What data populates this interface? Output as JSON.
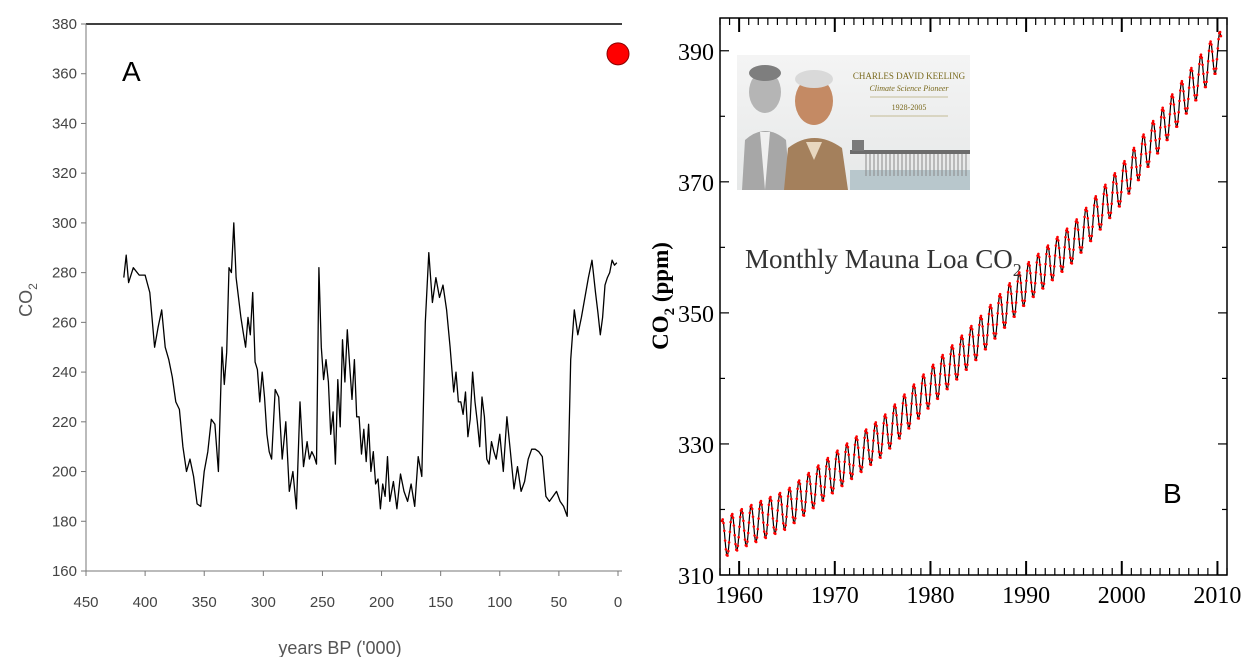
{
  "panel_a": {
    "panel_letter": "A",
    "xlabel": "years BP ('000)",
    "ylabel_main": "CO",
    "ylabel_sub": "2",
    "x_ticks": [
      "450",
      "400",
      "350",
      "300",
      "250",
      "200",
      "150",
      "100",
      "50",
      "0"
    ],
    "y_ticks": [
      "160",
      "180",
      "200",
      "220",
      "240",
      "260",
      "280",
      "300",
      "320",
      "340",
      "360",
      "380"
    ],
    "line_color": "#000000",
    "marker_color": "#ff0000"
  },
  "panel_b": {
    "panel_letter": "B",
    "inset_title": "Monthly Mauna Loa CO",
    "inset_title_sub": "2",
    "ylabel_main": "CO",
    "ylabel_sub": "2",
    "ylabel_unit": " (ppm)",
    "x_ticks": [
      "1960",
      "1970",
      "1980",
      "1990",
      "2000",
      "2010"
    ],
    "y_ticks": [
      "310",
      "330",
      "350",
      "370",
      "390"
    ],
    "photo": {
      "name": "CHARLES DAVID KEELING",
      "role": "Climate Science Pioneer",
      "years": "1928-2005"
    },
    "line_color": "#000000",
    "point_color": "#ff0000"
  },
  "chart_data": [
    {
      "type": "line",
      "xlabel": "years BP ('000)",
      "ylabel": "CO2",
      "xlim": [
        450,
        0
      ],
      "ylim": [
        160,
        380
      ],
      "series": [
        {
          "x": [
            418,
            416,
            414,
            410,
            405,
            400,
            396,
            392,
            389,
            386,
            383,
            380,
            377,
            374,
            371,
            368,
            365,
            362,
            359,
            356,
            353,
            350,
            347,
            344,
            341,
            338,
            335,
            333,
            331,
            329,
            327,
            325,
            323,
            321,
            319,
            317,
            315,
            313,
            311,
            309,
            307,
            305,
            303,
            301,
            299,
            297,
            295,
            293,
            290,
            287,
            284,
            281,
            278,
            275,
            272,
            269,
            266,
            263,
            261,
            259,
            257,
            255,
            253,
            251,
            249,
            247,
            245,
            243,
            241,
            239,
            237,
            235,
            233,
            231,
            229,
            227,
            225,
            223,
            221,
            219,
            217,
            215,
            213,
            211,
            209,
            207,
            205,
            203,
            201,
            199,
            197,
            195,
            193,
            190,
            187,
            184,
            181,
            178,
            175,
            172,
            169,
            166,
            163,
            160,
            157,
            154,
            151,
            148,
            145,
            142,
            139,
            137,
            135,
            133,
            131,
            129,
            127,
            125,
            123,
            121,
            119,
            117,
            115,
            113,
            111,
            109,
            107,
            105,
            103,
            100,
            97,
            94,
            91,
            88,
            85,
            82,
            79,
            76,
            73,
            70,
            67,
            64,
            61,
            58,
            55,
            52,
            49,
            46,
            43,
            40,
            37,
            34,
            31,
            28,
            25,
            22,
            19,
            17,
            15,
            13,
            11,
            9,
            7,
            5,
            3,
            1
          ],
          "y": [
            278,
            287,
            276,
            282,
            279,
            279,
            272,
            250,
            258,
            265,
            250,
            245,
            238,
            228,
            225,
            210,
            200,
            205,
            198,
            187,
            186,
            200,
            208,
            221,
            219,
            200,
            250,
            235,
            248,
            282,
            280,
            300,
            278,
            270,
            262,
            256,
            250,
            262,
            255,
            272,
            244,
            241,
            228,
            240,
            230,
            215,
            208,
            205,
            233,
            230,
            205,
            220,
            192,
            200,
            185,
            228,
            202,
            212,
            205,
            208,
            206,
            203,
            282,
            250,
            237,
            245,
            236,
            215,
            224,
            203,
            237,
            218,
            253,
            236,
            257,
            243,
            229,
            245,
            222,
            222,
            207,
            217,
            204,
            219,
            200,
            208,
            195,
            197,
            185,
            195,
            190,
            206,
            188,
            196,
            185,
            199,
            192,
            188,
            195,
            186,
            206,
            198,
            260,
            288,
            268,
            278,
            270,
            275,
            265,
            250,
            232,
            240,
            228,
            228,
            223,
            232,
            214,
            221,
            240,
            228,
            220,
            210,
            230,
            222,
            205,
            203,
            212,
            208,
            205,
            215,
            200,
            222,
            208,
            193,
            202,
            192,
            196,
            205,
            209,
            209,
            208,
            206,
            190,
            188,
            190,
            192,
            188,
            186,
            182,
            245,
            265,
            255,
            262,
            270,
            278,
            285,
            272,
            264,
            255,
            262,
            275,
            278,
            280,
            285,
            283,
            284
          ]
        },
        {
          "name": "",
          "x": [
            0
          ],
          "y": [
            368
          ]
        }
      ]
    },
    {
      "type": "line",
      "ylabel": "CO2 (ppm)",
      "xlim": [
        1958,
        2011
      ],
      "ylim": [
        310,
        395
      ],
      "trend": {
        "x": [
          1958,
          1960,
          1965,
          1970,
          1975,
          1980,
          1985,
          1990,
          1995,
          2000,
          2005,
          2010
        ],
        "y": [
          315.3,
          316.9,
          320.0,
          325.7,
          331.1,
          338.7,
          346.1,
          354.4,
          360.8,
          369.6,
          379.8,
          389.9
        ]
      },
      "seasonal_amplitude_ppm": 3
    }
  ]
}
